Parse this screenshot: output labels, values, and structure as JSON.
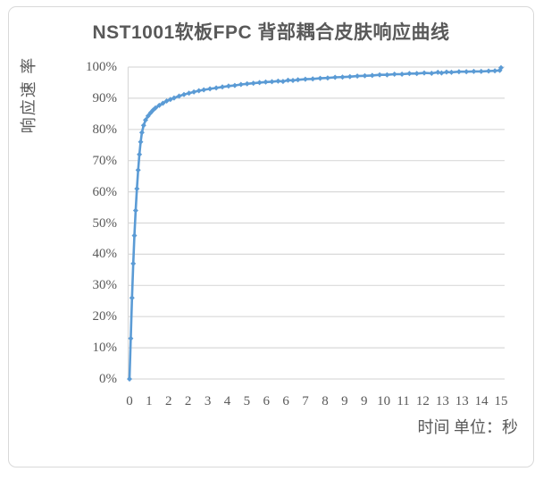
{
  "colors": {
    "line": "#5B9BD5",
    "grid": "#D9D9D9",
    "axis_line": "#D9D9D9",
    "tick_text": "#595959",
    "title_text": "#595959",
    "frame_border": "#D9D9D9",
    "background": "#FFFFFF"
  },
  "chart_data": {
    "type": "line",
    "title": "NST1001软板FPC 背部耦合皮肤响应曲线",
    "ylabel": "响应速 率",
    "xlabel": "时间 单位：秒",
    "legend": false,
    "grid": "horizontal",
    "ylim_percent": [
      0,
      100
    ],
    "x_range_seconds": [
      0,
      15
    ],
    "y_tick_labels": [
      "0%",
      "10%",
      "20%",
      "30%",
      "40%",
      "50%",
      "60%",
      "70%",
      "80%",
      "90%",
      "100%"
    ],
    "x_tick_labels": [
      "0",
      "1",
      "2",
      "2",
      "3",
      "4",
      "5",
      "6",
      "6",
      "7",
      "8",
      "9",
      "9",
      "10",
      "11",
      "12",
      "13",
      "13",
      "14",
      "15"
    ],
    "series": [
      {
        "marker": "diamond",
        "color": "#5B9BD5",
        "points_seconds_vs_percent": [
          [
            0,
            0
          ],
          [
            0.05,
            13
          ],
          [
            0.1,
            26
          ],
          [
            0.15,
            37
          ],
          [
            0.2,
            46
          ],
          [
            0.25,
            54
          ],
          [
            0.3,
            61
          ],
          [
            0.35,
            67
          ],
          [
            0.4,
            72
          ],
          [
            0.45,
            76
          ],
          [
            0.5,
            79
          ],
          [
            0.57,
            81.3
          ],
          [
            0.65,
            83
          ],
          [
            0.75,
            84.3
          ],
          [
            0.85,
            85.3
          ],
          [
            0.95,
            86.2
          ],
          [
            1.05,
            86.9
          ],
          [
            1.2,
            87.7
          ],
          [
            1.35,
            88.4
          ],
          [
            1.5,
            89.1
          ],
          [
            1.65,
            89.6
          ],
          [
            1.8,
            90.1
          ],
          [
            2.0,
            90.7
          ],
          [
            2.2,
            91.2
          ],
          [
            2.4,
            91.6
          ],
          [
            2.6,
            92.0
          ],
          [
            2.8,
            92.4
          ],
          [
            3.0,
            92.7
          ],
          [
            3.25,
            93.0
          ],
          [
            3.5,
            93.3
          ],
          [
            3.75,
            93.6
          ],
          [
            4.0,
            93.9
          ],
          [
            4.25,
            94.1
          ],
          [
            4.5,
            94.4
          ],
          [
            4.75,
            94.6
          ],
          [
            5.0,
            94.8
          ],
          [
            5.25,
            95.0
          ],
          [
            5.5,
            95.2
          ],
          [
            5.75,
            95.3
          ],
          [
            6.0,
            95.5
          ],
          [
            6.2,
            95.4
          ],
          [
            6.4,
            95.8
          ],
          [
            6.6,
            95.7
          ],
          [
            6.8,
            95.9
          ],
          [
            7.1,
            96.1
          ],
          [
            7.4,
            96.2
          ],
          [
            7.7,
            96.4
          ],
          [
            8.0,
            96.5
          ],
          [
            8.3,
            96.7
          ],
          [
            8.6,
            96.8
          ],
          [
            8.9,
            96.9
          ],
          [
            9.2,
            97.1
          ],
          [
            9.5,
            97.2
          ],
          [
            9.8,
            97.3
          ],
          [
            10.1,
            97.5
          ],
          [
            10.4,
            97.5
          ],
          [
            10.7,
            97.7
          ],
          [
            11.0,
            97.7
          ],
          [
            11.3,
            97.9
          ],
          [
            11.6,
            97.9
          ],
          [
            11.9,
            98.1
          ],
          [
            12.2,
            98.0
          ],
          [
            12.45,
            98.3
          ],
          [
            12.6,
            98.1
          ],
          [
            12.8,
            98.4
          ],
          [
            13.0,
            98.3
          ],
          [
            13.3,
            98.5
          ],
          [
            13.6,
            98.5
          ],
          [
            13.9,
            98.6
          ],
          [
            14.2,
            98.6
          ],
          [
            14.5,
            98.7
          ],
          [
            14.75,
            98.8
          ],
          [
            14.95,
            98.9
          ],
          [
            15.0,
            99.8
          ]
        ]
      }
    ]
  }
}
